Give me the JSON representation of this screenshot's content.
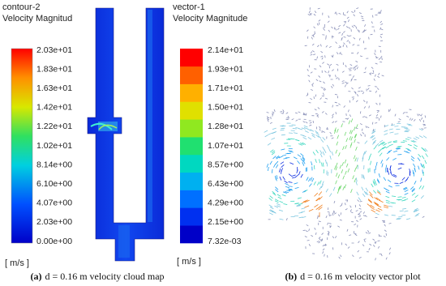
{
  "panel_a": {
    "name": "contour-2",
    "quantity": "Velocity Magnitud",
    "ticks": [
      "2.03e+01",
      "1.83e+01",
      "1.63e+01",
      "1.42e+01",
      "1.22e+01",
      "1.02e+01",
      "8.14e+00",
      "6.10e+00",
      "4.07e+00",
      "2.03e+00",
      "0.00e+00"
    ],
    "unit": "[ m/s ]"
  },
  "panel_b": {
    "name": "vector-1",
    "quantity": "Velocity Magnitude",
    "ticks": [
      "2.14e+01",
      "1.93e+01",
      "1.71e+01",
      "1.50e+01",
      "1.28e+01",
      "1.07e+01",
      "8.57e+00",
      "6.43e+00",
      "4.29e+00",
      "2.15e+00",
      "7.32e-03"
    ],
    "unit": "[ m/s ]"
  },
  "captions": [
    {
      "label": "(a)",
      "text": "d = 0.16 m velocity cloud map"
    },
    {
      "label": "(b)",
      "text": "d = 0.16 m velocity vector plot"
    }
  ]
}
